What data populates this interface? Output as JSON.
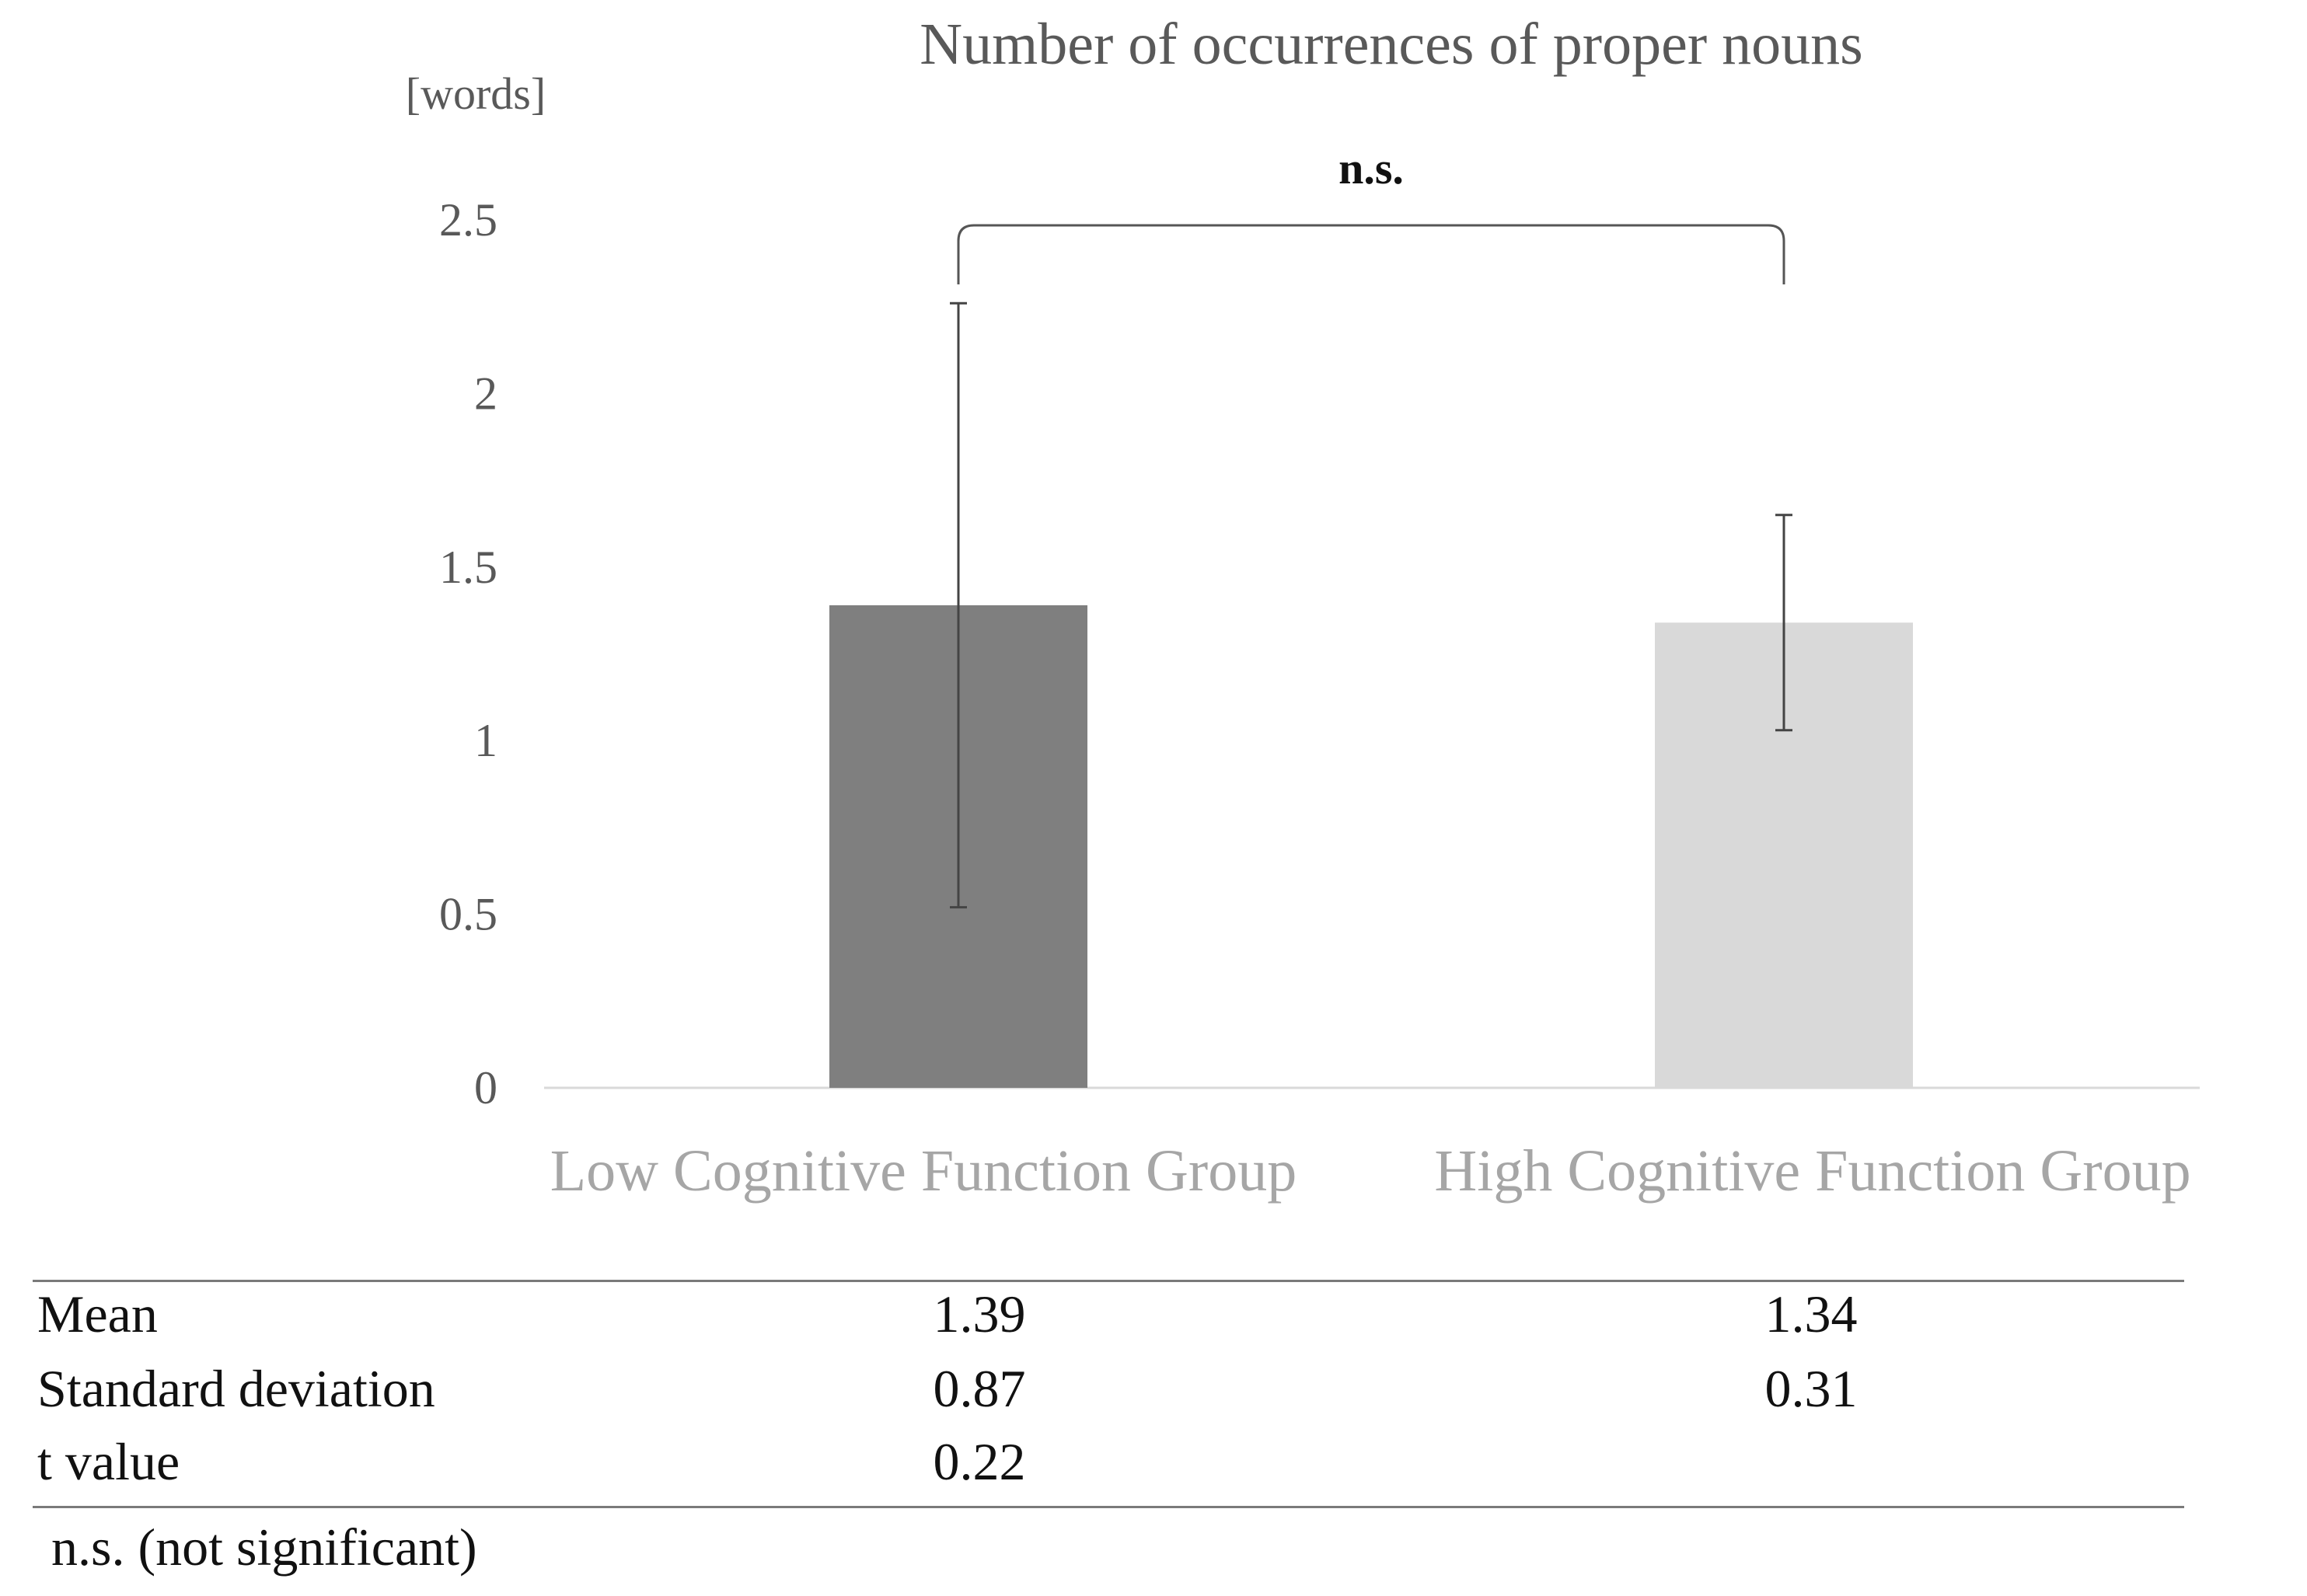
{
  "chart_data": {
    "type": "bar",
    "title": "Number of occurrences of proper nouns",
    "ylabel": "[words]",
    "xlabel": "",
    "ylim": [
      0,
      2.5
    ],
    "yticks": [
      0,
      0.5,
      1,
      1.5,
      2,
      2.5
    ],
    "ytick_labels": [
      "0",
      "0.5",
      "1",
      "1.5",
      "2",
      "2.5"
    ],
    "grid": false,
    "categories": [
      "Low Cognitive Function Group",
      "High Cognitive Function Group"
    ],
    "values": [
      1.39,
      1.34
    ],
    "errors": [
      0.87,
      0.31
    ],
    "bar_colors": [
      "#7f7f7f",
      "#d9d9d9"
    ],
    "significance": {
      "label": "n.s.",
      "between": [
        0,
        1
      ]
    }
  },
  "table": {
    "rows": [
      {
        "label": "Mean",
        "low": "1.39",
        "high": "1.34"
      },
      {
        "label": "Standard deviation",
        "low": "0.87",
        "high": "0.31"
      },
      {
        "label": "t value",
        "low": "0.22",
        "high": ""
      }
    ],
    "note": "n.s. (not significant)"
  }
}
